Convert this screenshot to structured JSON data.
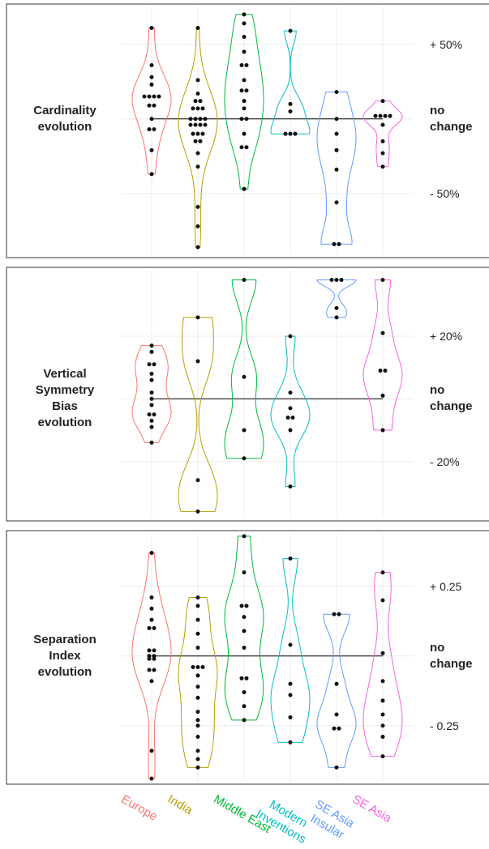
{
  "chart_data": [
    {
      "type": "violin",
      "title": "Cardinality evolution",
      "ylim": [
        -93,
        77
      ],
      "yticks": [
        {
          "value": 50,
          "label": "+ 50%"
        },
        {
          "value": 0,
          "label": "no change"
        },
        {
          "value": -50,
          "label": "- 50%"
        }
      ],
      "grid": true,
      "series": [
        {
          "color": "#f8766d",
          "values": [
            61,
            36,
            28,
            23,
            15,
            15,
            15,
            15,
            9,
            9,
            0,
            -7,
            -7,
            -21,
            -37
          ]
        },
        {
          "color": "#b79f00",
          "values": [
            61,
            26,
            17,
            12,
            12,
            7,
            7,
            7,
            0,
            0,
            0,
            0,
            -4,
            -4,
            -4,
            -4,
            -10,
            -10,
            -10,
            -15,
            -15,
            -23,
            -32,
            -59,
            -72,
            -86
          ]
        },
        {
          "color": "#00ba38",
          "values": [
            70,
            64,
            55,
            45,
            36,
            36,
            26,
            19,
            19,
            12,
            7,
            0,
            0,
            -10,
            -19,
            -19,
            -47
          ]
        },
        {
          "color": "#00bfc4",
          "values": [
            59,
            10,
            5,
            -10,
            -10,
            -10
          ]
        },
        {
          "color": "#619cff",
          "values": [
            18,
            0,
            -10,
            -21,
            -34,
            -56,
            -84,
            -84
          ]
        },
        {
          "color": "#f564e3",
          "values": [
            12,
            2,
            2,
            2,
            2,
            -4,
            -15,
            -23,
            -32
          ]
        }
      ]
    },
    {
      "type": "violin",
      "title": "Vertical Symmetry Bias evolution",
      "ylim": [
        -39,
        42
      ],
      "yticks": [
        {
          "value": 20,
          "label": "+ 20%"
        },
        {
          "value": 0,
          "label": "no change"
        },
        {
          "value": -20,
          "label": "- 20%"
        }
      ],
      "grid": true,
      "series": [
        {
          "color": "#f8766d",
          "values": [
            17,
            15,
            11,
            11,
            8,
            6,
            2,
            0,
            -2,
            -5,
            -5,
            -7,
            -9,
            -14
          ]
        },
        {
          "color": "#b79f00",
          "values": [
            26,
            12,
            -26,
            -36
          ]
        },
        {
          "color": "#00ba38",
          "values": [
            38,
            7,
            -10,
            -19
          ]
        },
        {
          "color": "#00bfc4",
          "values": [
            20,
            2,
            -3,
            -6,
            -6,
            -10,
            -28
          ]
        },
        {
          "color": "#619cff",
          "values": [
            38,
            38,
            38,
            29,
            26
          ]
        },
        {
          "color": "#f564e3",
          "values": [
            38,
            21,
            9,
            9,
            1,
            -10
          ]
        }
      ]
    },
    {
      "type": "violin",
      "title": "Separation Index evolution",
      "ylim": [
        -0.46,
        0.45
      ],
      "yticks": [
        {
          "value": 0.25,
          "label": "+ 0.25"
        },
        {
          "value": 0,
          "label": "no change"
        },
        {
          "value": -0.25,
          "label": "- 0.25"
        }
      ],
      "grid": true,
      "series": [
        {
          "name": "Europe",
          "color": "#f8766d",
          "values": [
            0.37,
            0.21,
            0.17,
            0.13,
            0.1,
            0.1,
            0.02,
            0.02,
            0,
            0,
            -0.01,
            -0.01,
            -0.05,
            -0.05,
            -0.09,
            -0.34,
            -0.44
          ]
        },
        {
          "name": "India",
          "color": "#b79f00",
          "values": [
            0.21,
            0.18,
            0.13,
            0.08,
            0.03,
            -0.04,
            -0.04,
            -0.04,
            -0.07,
            -0.11,
            -0.15,
            -0.2,
            -0.23,
            -0.25,
            -0.29,
            -0.34,
            -0.37,
            -0.4
          ]
        },
        {
          "name": "Middle East",
          "color": "#00ba38",
          "values": [
            0.43,
            0.3,
            0.18,
            0.18,
            0.14,
            0.09,
            0.03,
            -0.08,
            -0.08,
            -0.13,
            -0.18,
            -0.23
          ]
        },
        {
          "name": "Modern Inventions",
          "color": "#00bfc4",
          "values": [
            0.35,
            0.04,
            -0.1,
            -0.14,
            -0.22,
            -0.31
          ]
        },
        {
          "name": "SE Asia Insular",
          "color": "#619cff",
          "values": [
            0.15,
            0.15,
            -0.1,
            -0.21,
            -0.26,
            -0.26,
            -0.4
          ]
        },
        {
          "name": "SE Asia",
          "color": "#f564e3",
          "values": [
            0.3,
            0.2,
            0.01,
            -0.09,
            -0.16,
            -0.21,
            -0.25,
            -0.29,
            -0.36
          ]
        }
      ]
    }
  ]
}
